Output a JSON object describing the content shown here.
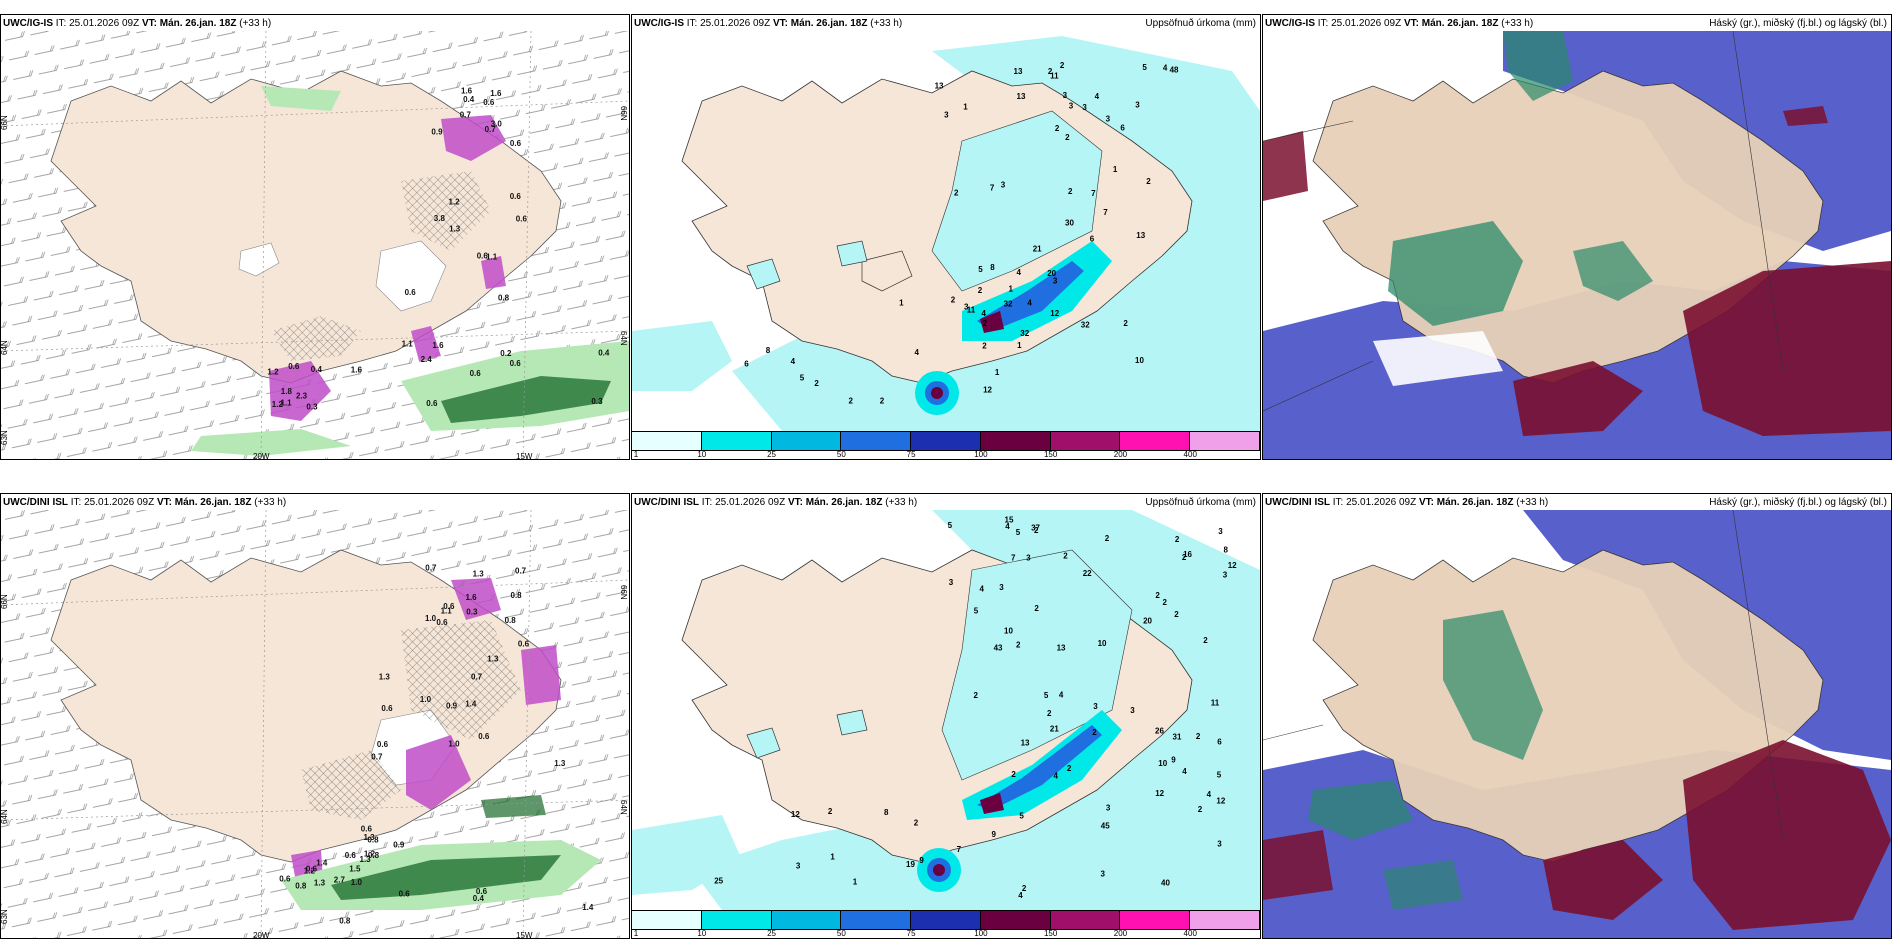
{
  "panels": [
    {
      "model": "UWC/IG-IS",
      "it_label": "IT:",
      "it_value": "25.01.2026 09Z",
      "vt_label": "VT:",
      "vt_value": "Mán. 26.jan. 18Z",
      "lead": "(+33 h)",
      "right_label": "",
      "lat_labels": [
        "66N",
        "64N",
        "63N"
      ],
      "lat_right": [
        "66N",
        "64N"
      ],
      "lon_labels": [
        "20W",
        "15W"
      ],
      "values": [
        "0.6",
        "1.2",
        "0.6",
        "0.6",
        "0.6",
        "1.2",
        "1.2",
        "0.2",
        "0.9",
        "0.6",
        "0.6",
        "0.6",
        "0.4",
        "0.4",
        "1.1",
        "1.1",
        "1.6",
        "1.6",
        "0.6",
        "0.4",
        "0.7",
        "2.3",
        "1.3",
        "1.6",
        "1.6",
        "1.8",
        "0.8",
        "0.3",
        "3.0",
        "0.3",
        "3.8",
        "2.4",
        "0.7",
        "1.1",
        "0.6",
        "0.6"
      ]
    },
    {
      "model": "UWC/IG-IS",
      "it_label": "IT:",
      "it_value": "25.01.2026 09Z",
      "vt_label": "VT:",
      "vt_value": "Mán. 26.jan. 18Z",
      "lead": "(+33 h)",
      "right_label": "Uppsöfnuð úrkoma (mm)",
      "values": [
        "1",
        "6",
        "8",
        "2",
        "3",
        "3",
        "4",
        "5",
        "5",
        "1",
        "3",
        "2",
        "4",
        "2",
        "1",
        "1",
        "3",
        "2",
        "2",
        "2",
        "3",
        "2",
        "4",
        "2",
        "11",
        "21",
        "11",
        "4",
        "2",
        "7",
        "2",
        "2",
        "3",
        "30",
        "32",
        "6",
        "4",
        "7",
        "3",
        "10",
        "48",
        "2",
        "32",
        "4",
        "13",
        "7",
        "12",
        "12",
        "13",
        "6",
        "1",
        "2",
        "2",
        "2",
        "32",
        "1",
        "13",
        "13",
        "5",
        "8",
        "3",
        "3",
        "20",
        "4"
      ],
      "colorbar_labels": [
        "1",
        "10",
        "25",
        "50",
        "75",
        "100",
        "150",
        "200",
        "400"
      ]
    },
    {
      "model": "UWC/IG-IS",
      "it_label": "IT:",
      "it_value": "25.01.2026 09Z",
      "vt_label": "VT:",
      "vt_value": "Mán. 26.jan. 18Z",
      "lead": "(+33 h)",
      "right_label": "Háský (gr.), miðský (fj.bl.) og lágský (bl.)"
    },
    {
      "model": "UWC/DINI ISL",
      "it_label": "IT:",
      "it_value": "25.01.2026 09Z",
      "vt_label": "VT:",
      "vt_value": "Mán. 26.jan. 18Z",
      "lead": "(+33 h)",
      "right_label": "",
      "lat_labels": [
        "66N",
        "64N",
        "63N"
      ],
      "lat_right": [
        "66N",
        "64N"
      ],
      "lon_labels": [
        "20W",
        "15W"
      ],
      "values": [
        "0.8",
        "0.6",
        "0.6",
        "0.4",
        "0.3",
        "0.9",
        "0.6",
        "0.6",
        "1.6",
        "1.4",
        "0.6",
        "1.2",
        "0.6",
        "1.0",
        "1.5",
        "1.4",
        "0.8",
        "0.6",
        "0.8",
        "1.3",
        "1.0",
        "0.6",
        "0.6",
        "0.8",
        "0.7",
        "1.3",
        "2.7",
        "1.3",
        "1.1",
        "1.3",
        "1.2",
        "0.6",
        "1.3",
        "1.3",
        "1.4",
        "1.3",
        "0.6",
        "0.7",
        "1.0",
        "0.8",
        "0.6",
        "0.7",
        "0.8",
        "0.9",
        "0.7",
        "1.0"
      ]
    },
    {
      "model": "UWC/DINI ISL",
      "it_label": "IT:",
      "it_value": "25.01.2026 09Z",
      "vt_label": "VT:",
      "vt_value": "Mán. 26.jan. 18Z",
      "lead": "(+33 h)",
      "right_label": "Uppsöfnuð úrkoma (mm)",
      "values": [
        "2",
        "2",
        "5",
        "3",
        "3",
        "3",
        "3",
        "2",
        "3",
        "2",
        "2",
        "1",
        "2",
        "4",
        "2",
        "3",
        "5",
        "2",
        "2",
        "2",
        "15",
        "3",
        "2",
        "2",
        "2",
        "2",
        "5",
        "3",
        "3",
        "43",
        "4",
        "8",
        "5",
        "2",
        "21",
        "45",
        "2",
        "2",
        "4",
        "2",
        "7",
        "5",
        "10",
        "40",
        "22",
        "5",
        "4",
        "4",
        "8",
        "4",
        "26",
        "25",
        "3",
        "10",
        "6",
        "9",
        "4",
        "11",
        "9",
        "1",
        "37",
        "20",
        "12",
        "7",
        "2",
        "2",
        "31",
        "19",
        "16",
        "10",
        "12",
        "12",
        "12",
        "13",
        "13",
        "9",
        "3",
        "2"
      ],
      "colorbar_labels": [
        "1",
        "10",
        "25",
        "50",
        "75",
        "100",
        "150",
        "200",
        "400"
      ]
    },
    {
      "model": "UWC/DINI ISL",
      "it_label": "IT:",
      "it_value": "25.01.2026 09Z",
      "vt_label": "VT:",
      "vt_value": "Mán. 26.jan. 18Z",
      "lead": "(+33 h)",
      "right_label": "Háský (gr.), miðský (fj.bl.) og lágský (bl.)"
    }
  ],
  "colorbar_colors": [
    "#e6ffff",
    "#00e8e8",
    "#00b8e0",
    "#1f6fe0",
    "#1b2fb0",
    "#6a0040",
    "#a0106a",
    "#ff10b0",
    "#f0a0e8"
  ],
  "colors": {
    "land": "#f5e6d8",
    "land_topo": "#e8d4c0",
    "sea": "#ffffff",
    "precip_light": "#b5f5f5",
    "precip_cyan": "#00e8e8",
    "precip_blue": "#1f6fe0",
    "precip_dark": "#6a0040",
    "icing_purple": "#c04cc8",
    "icing_green_light": "#b5e8b5",
    "icing_green_dark": "#1a6a2a",
    "cloud_low": "#4f57c8",
    "cloud_mid": "#2a8a6a",
    "cloud_high": "#7a1030",
    "cloud_land": "#e8d0b8"
  }
}
